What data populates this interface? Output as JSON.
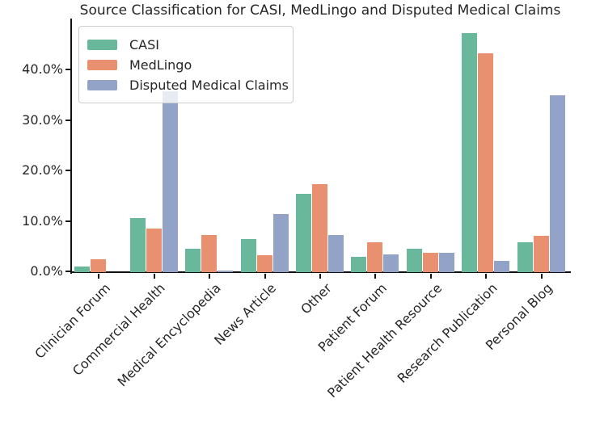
{
  "chart_data": {
    "type": "bar",
    "title": "Source Classification for CASI, MedLingo and Disputed Medical Claims",
    "categories": [
      "Clinician Forum",
      "Commercial Health",
      "Medical Encyclopedia",
      "News Article",
      "Other",
      "Patient Forum",
      "Patient Health Resource",
      "Research Publication",
      "Personal Blog"
    ],
    "series": [
      {
        "name": "CASI",
        "color": "#6ab89c",
        "values": [
          1.1,
          10.7,
          4.7,
          6.5,
          15.5,
          3.1,
          4.6,
          47.3,
          6.0
        ]
      },
      {
        "name": "MedLingo",
        "color": "#e8906f",
        "values": [
          2.5,
          8.6,
          7.3,
          3.4,
          17.4,
          5.9,
          3.8,
          43.4,
          7.2
        ]
      },
      {
        "name": "Disputed Medical Claims",
        "color": "#93a3c8",
        "values": [
          0.0,
          35.9,
          0.3,
          11.5,
          7.3,
          3.6,
          3.9,
          2.2,
          35.1
        ]
      }
    ],
    "ylabel": "",
    "xlabel": "",
    "ylim": [
      0,
      50
    ],
    "yticks": {
      "values": [
        0,
        10,
        20,
        30,
        40
      ],
      "labels": [
        "0.0%",
        "10.0%",
        "20.0%",
        "30.0%",
        "40.0%"
      ]
    },
    "grid": false,
    "legend_position": "upper-left",
    "axis_color": "#111111",
    "text_color": "#262626"
  }
}
